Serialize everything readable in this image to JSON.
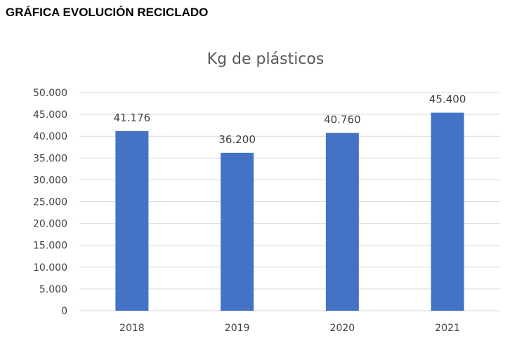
{
  "document": {
    "heading": "GRÁFICA EVOLUCIÓN RECICLADO"
  },
  "chart_data": {
    "type": "bar",
    "title": "Kg de plásticos",
    "categories": [
      "2018",
      "2019",
      "2020",
      "2021"
    ],
    "values": [
      41176,
      36200,
      40760,
      45400
    ],
    "data_labels": [
      "41.176",
      "36.200",
      "40.760",
      "45.400"
    ],
    "ylim": [
      0,
      50000
    ],
    "y_ticks": [
      0,
      5000,
      10000,
      15000,
      20000,
      25000,
      30000,
      35000,
      40000,
      45000,
      50000
    ],
    "y_tick_labels": [
      "0",
      "5.000",
      "10.000",
      "15.000",
      "20.000",
      "25.000",
      "30.000",
      "35.000",
      "40.000",
      "45.000",
      "50.000"
    ],
    "xlabel": "",
    "ylabel": "",
    "grid": true,
    "legend": "none",
    "bar_color": "#4472c4"
  }
}
